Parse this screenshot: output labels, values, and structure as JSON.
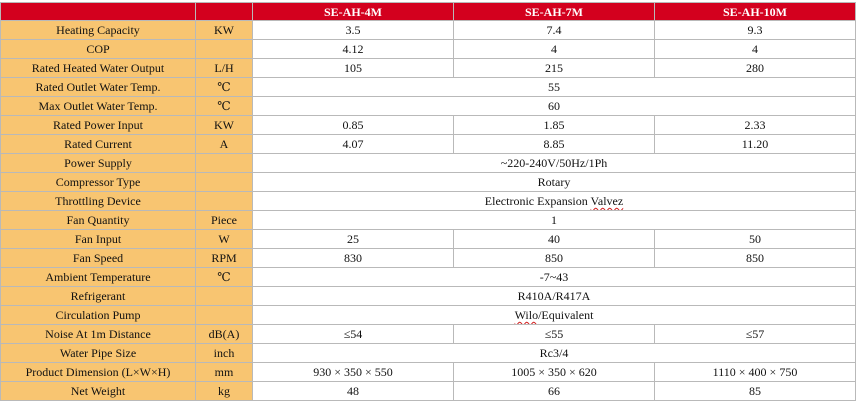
{
  "header": {
    "param": "",
    "unit": "",
    "models": [
      "SE-AH-4M",
      "SE-AH-7M",
      "SE-AH-10M"
    ]
  },
  "rows": [
    {
      "param": "Heating Capacity",
      "unit": "KW",
      "values": [
        "3.5",
        "7.4",
        "9.3"
      ]
    },
    {
      "param": "COP",
      "unit": "",
      "values": [
        "4.12",
        "4",
        "4"
      ]
    },
    {
      "param": "Rated Heated Water Output",
      "unit": "L/H",
      "values": [
        "105",
        "215",
        "280"
      ]
    },
    {
      "param": "Rated Outlet Water Temp.",
      "unit": "℃",
      "value": "55"
    },
    {
      "param": "Max Outlet Water Temp.",
      "unit": "℃",
      "value": "60"
    },
    {
      "param": "Rated Power Input",
      "unit": "KW",
      "values": [
        "0.85",
        "1.85",
        "2.33"
      ]
    },
    {
      "param": "Rated Current",
      "unit": "A",
      "values": [
        "4.07",
        "8.85",
        "11.20"
      ]
    },
    {
      "param": "Power Supply",
      "unit": "",
      "value": "~220-240V/50Hz/1Ph"
    },
    {
      "param": "Compressor Type",
      "unit": "",
      "value": "Rotary"
    },
    {
      "param": "Throttling Device",
      "unit": "",
      "value_pre": "Electronic Expansion ",
      "value_squiggle": "Valvez"
    },
    {
      "param": "Fan Quantity",
      "unit": "Piece",
      "value": "1"
    },
    {
      "param": "Fan Input",
      "unit": "W",
      "values": [
        "25",
        "40",
        "50"
      ]
    },
    {
      "param": "Fan Speed",
      "unit": "RPM",
      "values": [
        "830",
        "850",
        "850"
      ]
    },
    {
      "param": "Ambient Temperature",
      "unit": "℃",
      "value": "-7~43"
    },
    {
      "param": "Refrigerant",
      "unit": "",
      "value": "R410A/R417A"
    },
    {
      "param": "Circulation Pump",
      "unit": "",
      "value_squiggle": "Wilo",
      "value_post": "/Equivalent"
    },
    {
      "param": "Noise At 1m Distance",
      "unit": "dB(A)",
      "values": [
        "≤54",
        "≤55",
        "≤57"
      ]
    },
    {
      "param": "Water Pipe Size",
      "unit": "inch",
      "value": "Rc3/4"
    },
    {
      "param": "Product Dimension (L×W×H)",
      "unit": "mm",
      "values": [
        "930 × 350 × 550",
        "1005 × 350 × 620",
        "1110 × 400 × 750"
      ]
    },
    {
      "param": "Net Weight",
      "unit": "kg",
      "values": [
        "48",
        "66",
        "85"
      ]
    }
  ],
  "colors": {
    "header_bg": "#d3001e",
    "param_bg": "#f8c571",
    "border": "#b9b9b9"
  }
}
